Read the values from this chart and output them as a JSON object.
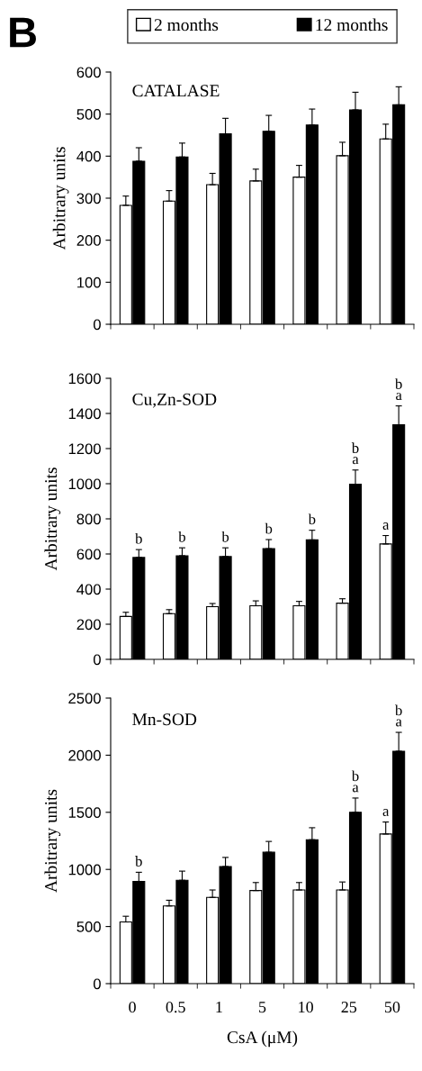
{
  "chart_data": [
    {
      "type": "bar",
      "title": "CATALASE",
      "ylabel": "Arbitrary units",
      "annotations": [
        "B"
      ],
      "categories": [
        "0",
        "0.5",
        "1",
        "5",
        "10",
        "25",
        "50"
      ],
      "ylim": [
        0,
        600
      ],
      "yticks": [
        0,
        100,
        200,
        300,
        400,
        500,
        600
      ],
      "legend": "top",
      "tick_labels": "y",
      "grid": false,
      "series": [
        {
          "name": "2 months",
          "color": "#ffffff",
          "values": [
            283,
            293,
            332,
            341,
            350,
            401,
            441
          ],
          "errors": [
            [
              283,
              305
            ],
            [
              293,
              318
            ],
            [
              332,
              359
            ],
            [
              341,
              369
            ],
            [
              350,
              378
            ],
            [
              401,
              433
            ],
            [
              441,
              476
            ]
          ]
        },
        {
          "name": "12 months",
          "color": "#000000",
          "values": [
            388,
            398,
            453,
            459,
            474,
            510,
            522
          ],
          "errors": [
            [
              388,
              420
            ],
            [
              398,
              431
            ],
            [
              453,
              490
            ],
            [
              459,
              497
            ],
            [
              474,
              512
            ],
            [
              510,
              552
            ],
            [
              522,
              565
            ]
          ]
        }
      ]
    },
    {
      "type": "bar",
      "title": "Cu,Zn-SOD",
      "ylabel": "Arbitrary units",
      "categories": [
        "0",
        "0.5",
        "1",
        "5",
        "10",
        "25",
        "50"
      ],
      "ylim": [
        0,
        1600
      ],
      "yticks": [
        0,
        200,
        400,
        600,
        800,
        1000,
        1200,
        1400,
        1600
      ],
      "tick_labels": "y",
      "grid": false,
      "series": [
        {
          "color": "#ffffff",
          "values": [
            244,
            260,
            300,
            305,
            305,
            320,
            657
          ],
          "errors": [
            [
              244,
              268
            ],
            [
              260,
              283
            ],
            [
              300,
              318
            ],
            [
              305,
              333
            ],
            [
              305,
              330
            ],
            [
              320,
              345
            ],
            [
              657,
              705
            ]
          ],
          "value_labels": [
            null,
            null,
            null,
            null,
            null,
            null,
            "a"
          ]
        },
        {
          "color": "#000000",
          "values": [
            580,
            590,
            585,
            630,
            680,
            997,
            1335
          ],
          "errors": [
            [
              580,
              625
            ],
            [
              590,
              635
            ],
            [
              585,
              635
            ],
            [
              630,
              682
            ],
            [
              680,
              735
            ],
            [
              997,
              1078
            ],
            [
              1335,
              1443
            ]
          ],
          "value_labels": [
            "b",
            "b",
            "b",
            "b",
            "b",
            "b\na",
            "b\na"
          ]
        }
      ]
    },
    {
      "type": "bar",
      "title": "Mn-SOD",
      "ylabel": "Arbitrary units",
      "xlabel": "CsA (μM)",
      "categories": [
        "0",
        "0.5",
        "1",
        "5",
        "10",
        "25",
        "50"
      ],
      "ylim": [
        0,
        2500
      ],
      "yticks": [
        0,
        500,
        1000,
        1500,
        2000,
        2500
      ],
      "grid": false,
      "series": [
        {
          "color": "#ffffff",
          "values": [
            540,
            680,
            755,
            815,
            820,
            820,
            1310
          ],
          "errors": [
            [
              540,
              590
            ],
            [
              680,
              730
            ],
            [
              755,
              820
            ],
            [
              815,
              885
            ],
            [
              820,
              885
            ],
            [
              820,
              890
            ],
            [
              1310,
              1415
            ]
          ],
          "value_labels": [
            null,
            null,
            null,
            null,
            null,
            null,
            "a"
          ]
        },
        {
          "color": "#000000",
          "values": [
            895,
            905,
            1025,
            1150,
            1260,
            1500,
            2035
          ],
          "errors": [
            [
              895,
              975
            ],
            [
              905,
              985
            ],
            [
              1025,
              1105
            ],
            [
              1150,
              1245
            ],
            [
              1260,
              1365
            ],
            [
              1500,
              1625
            ],
            [
              2035,
              2200
            ]
          ],
          "value_labels": [
            "b",
            null,
            null,
            null,
            null,
            "b\na",
            "b\na"
          ]
        }
      ]
    }
  ]
}
